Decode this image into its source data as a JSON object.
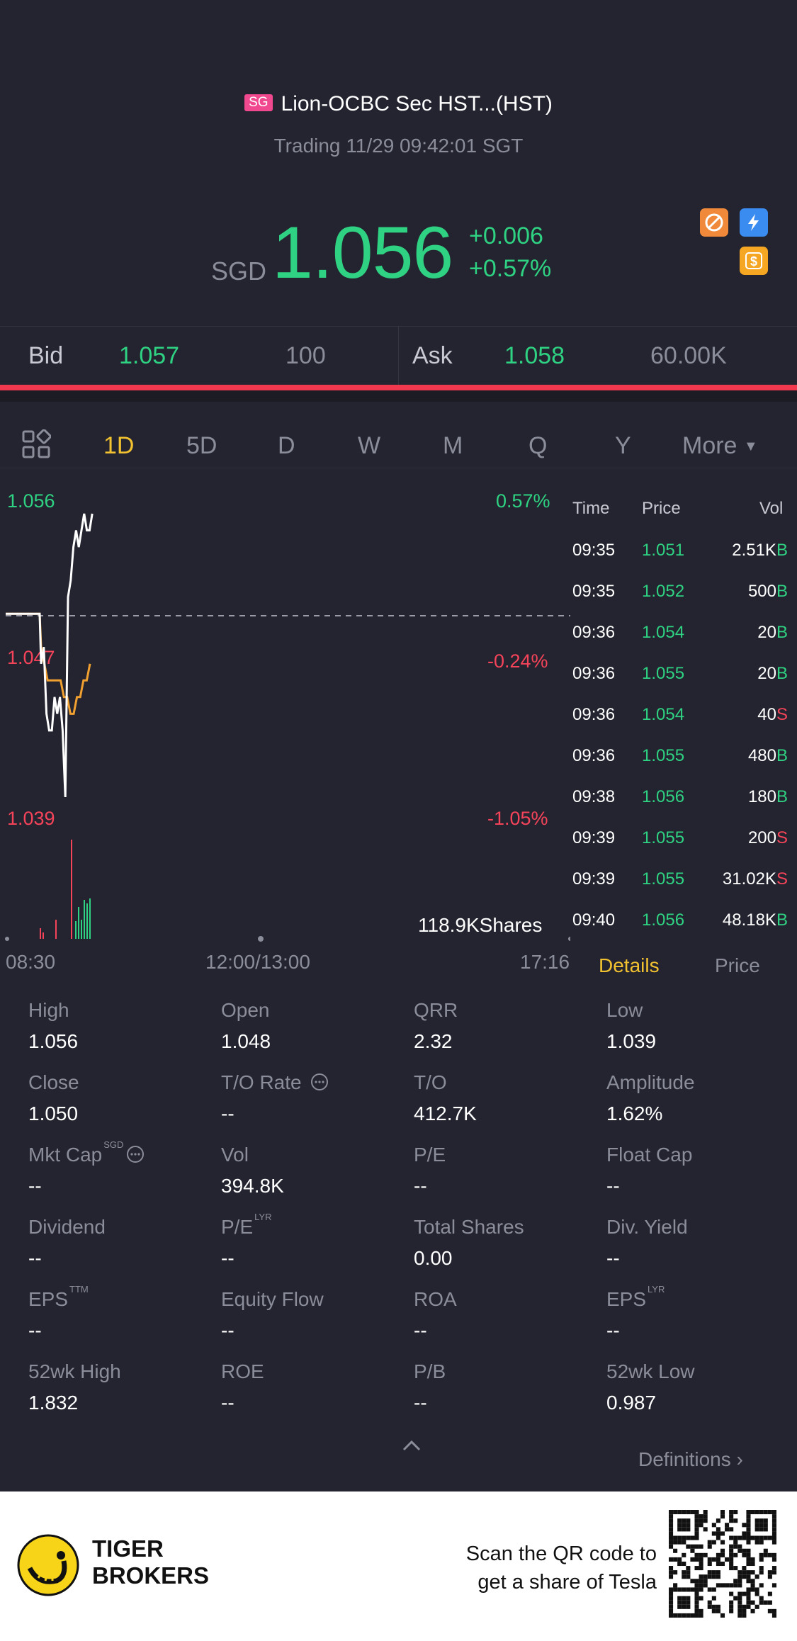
{
  "header": {
    "badge": "SG",
    "title": "Lion-OCBC Sec HST...(HST)",
    "status": "Trading 11/29 09:42:01 SGT"
  },
  "quote": {
    "currency": "SGD",
    "price": "1.056",
    "change": "+0.006",
    "change_pct": "+0.57%"
  },
  "icons": [
    "no-short-icon",
    "lightning-icon",
    "dollar-icon"
  ],
  "orderbook": {
    "bid_label": "Bid",
    "bid_price": "1.057",
    "bid_size": "100",
    "ask_label": "Ask",
    "ask_price": "1.058",
    "ask_size": "60.00K"
  },
  "tabs": [
    "1D",
    "5D",
    "D",
    "W",
    "M",
    "Q",
    "Y",
    "More"
  ],
  "active_tab": "1D",
  "chart": {
    "price_high": "1.056",
    "pct_high": "0.57%",
    "price_mid": "1.047",
    "pct_mid": "-0.24%",
    "price_low": "1.039",
    "pct_low": "-1.05%",
    "volume": "118.9KShares",
    "time_start": "08:30",
    "time_mid": "12:00/13:00",
    "time_end": "17:16"
  },
  "chart_data": {
    "type": "line",
    "ylim": [
      1.039,
      1.056
    ],
    "prev_close": 1.05,
    "series": [
      {
        "values": [
          1.05,
          1.05,
          1.05,
          1.05,
          1.047,
          1.048,
          1.044,
          1.043,
          1.043,
          1.045,
          1.044,
          1.045,
          1.043,
          1.039,
          1.051,
          1.052,
          1.054,
          1.055,
          1.054,
          1.055,
          1.056,
          1.055,
          1.055,
          1.056
        ]
      },
      {
        "values": [
          1.05,
          1.05,
          1.05,
          1.05,
          1.048,
          1.047,
          1.046,
          1.046,
          1.046,
          1.046,
          1.046,
          1.045,
          1.045,
          1.044,
          1.044,
          1.045,
          1.045,
          1.046,
          1.046,
          1.047
        ]
      }
    ]
  },
  "trades": {
    "headers": [
      "Time",
      "Price",
      "Vol"
    ],
    "rows": [
      {
        "time": "09:35",
        "price": "1.051",
        "vol": "2.51K",
        "side": "B"
      },
      {
        "time": "09:35",
        "price": "1.052",
        "vol": "500",
        "side": "B"
      },
      {
        "time": "09:36",
        "price": "1.054",
        "vol": "20",
        "side": "B"
      },
      {
        "time": "09:36",
        "price": "1.055",
        "vol": "20",
        "side": "B"
      },
      {
        "time": "09:36",
        "price": "1.054",
        "vol": "40",
        "side": "S"
      },
      {
        "time": "09:36",
        "price": "1.055",
        "vol": "480",
        "side": "B"
      },
      {
        "time": "09:38",
        "price": "1.056",
        "vol": "180",
        "side": "B"
      },
      {
        "time": "09:39",
        "price": "1.055",
        "vol": "200",
        "side": "S"
      },
      {
        "time": "09:39",
        "price": "1.055",
        "vol": "31.02K",
        "side": "S"
      },
      {
        "time": "09:40",
        "price": "1.056",
        "vol": "48.18K",
        "side": "B"
      }
    ],
    "tab_details": "Details",
    "tab_price": "Price"
  },
  "stats": [
    {
      "label": "High",
      "value": "1.056"
    },
    {
      "label": "Open",
      "value": "1.048"
    },
    {
      "label": "QRR",
      "value": "2.32"
    },
    {
      "label": "Low",
      "value": "1.039"
    },
    {
      "label": "Close",
      "value": "1.050"
    },
    {
      "label": "T/O Rate",
      "value": "--"
    },
    {
      "label": "T/O",
      "value": "412.7K"
    },
    {
      "label": "Amplitude",
      "value": "1.62%"
    },
    {
      "label": "Mkt Cap",
      "value": "--",
      "sup": "SGD"
    },
    {
      "label": "Vol",
      "value": "394.8K"
    },
    {
      "label": "P/E",
      "value": "--"
    },
    {
      "label": "Float Cap",
      "value": "--"
    },
    {
      "label": "Dividend",
      "value": "--"
    },
    {
      "label": "P/E",
      "value": "--",
      "sup": "LYR"
    },
    {
      "label": "Total Shares",
      "value": "0.00"
    },
    {
      "label": "Div. Yield",
      "value": "--"
    },
    {
      "label": "EPS",
      "value": "--",
      "sup": "TTM"
    },
    {
      "label": "Equity Flow",
      "value": "--"
    },
    {
      "label": "ROA",
      "value": "--"
    },
    {
      "label": "EPS",
      "value": "--",
      "sup": "LYR"
    },
    {
      "label": "52wk High",
      "value": "1.832"
    },
    {
      "label": "ROE",
      "value": "--"
    },
    {
      "label": "P/B",
      "value": "--"
    },
    {
      "label": "52wk Low",
      "value": "0.987"
    }
  ],
  "definitions_label": "Definitions",
  "footer": {
    "brand_line1": "TIGER",
    "brand_line2": "BROKERS",
    "promo_line1": "Scan the QR code to",
    "promo_line2": "get a share of Tesla"
  },
  "colors": {
    "up": "#2fd282",
    "down": "#f5435a",
    "accent": "#f2c230",
    "background": "#23242f"
  }
}
